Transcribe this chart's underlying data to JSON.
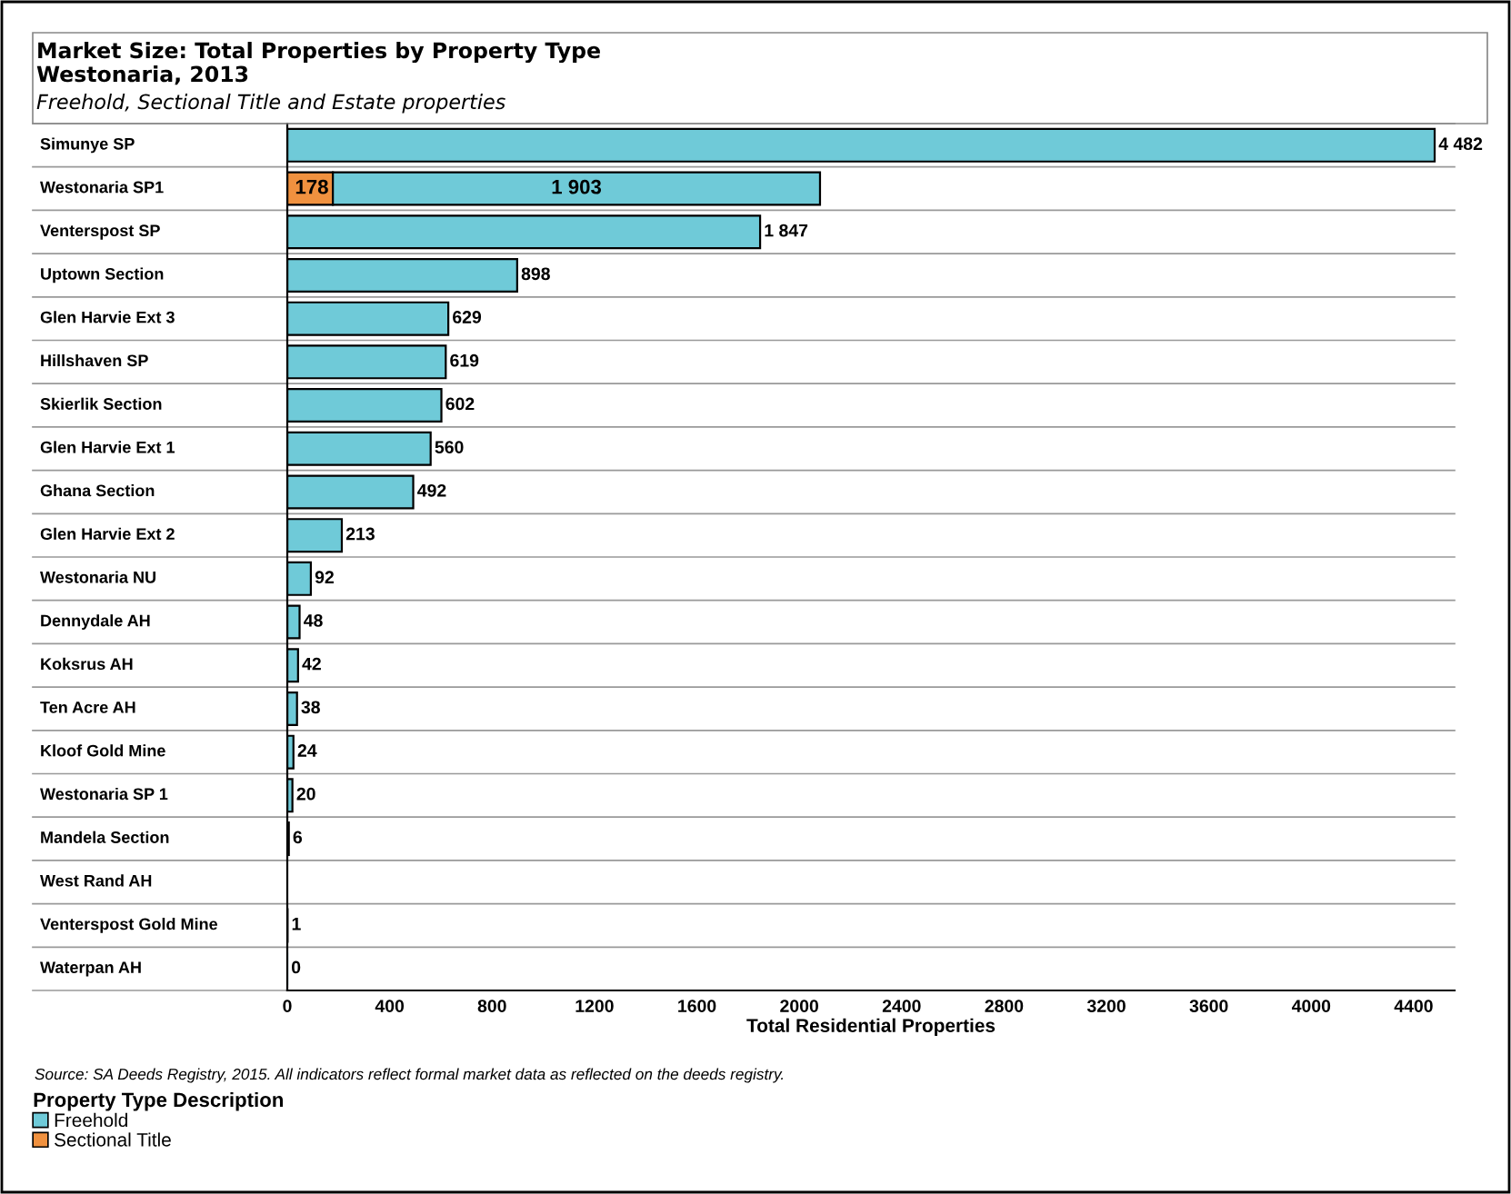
{
  "chart_data": {
    "type": "bar",
    "orientation": "horizontal",
    "stacked": true,
    "title": "Market Size: Total Properties by Property Type",
    "subtitle": "Westonaria, 2013",
    "xlabel": "Total Residential Properties",
    "legend_title": "Property Type Description",
    "legend": "bottom left",
    "categories": [
      "Simunye SP",
      "Westonaria SP1",
      "Venterspost SP",
      "Uptown Section",
      "Glen Harvie Ext 3",
      "Hillshaven SP",
      "Skierlik Section",
      "Glen Harvie Ext 1",
      "Ghana Section",
      "Glen Harvie Ext 2",
      "Westonaria NU",
      "Dennydale AH",
      "Koksrus AH",
      "Ten Acre AH",
      "Kloof Gold Mine",
      "Westonaria SP 1",
      "Mandela Section",
      "West Rand AH",
      "Venterspost Gold Mine",
      "Waterpan AH"
    ],
    "series": [
      {
        "name": "Sectional Title",
        "color": "#f0913f",
        "values": [
          null,
          178,
          null,
          null,
          null,
          null,
          null,
          null,
          null,
          null,
          null,
          null,
          null,
          null,
          null,
          null,
          null,
          null,
          null,
          null
        ],
        "value_labels": [
          null,
          "178",
          null,
          null,
          null,
          null,
          null,
          null,
          null,
          null,
          null,
          null,
          null,
          null,
          null,
          null,
          null,
          null,
          null,
          null
        ]
      },
      {
        "name": "Freehold",
        "color": "#6fcad8",
        "values": [
          4482,
          1903,
          1847,
          898,
          629,
          619,
          602,
          560,
          492,
          213,
          92,
          48,
          42,
          38,
          24,
          20,
          6,
          null,
          1,
          0
        ],
        "value_labels": [
          "4 482",
          "1 903",
          "1 847",
          "898",
          "629",
          "619",
          "602",
          "560",
          "492",
          "213",
          "92",
          "48",
          "42",
          "38",
          "24",
          "20",
          "6",
          null,
          "1",
          "0"
        ]
      }
    ],
    "xlim": [
      0,
      4560
    ],
    "xticks": [
      0,
      400,
      800,
      1200,
      1600,
      2000,
      2400,
      2800,
      3200,
      3600,
      4000,
      4400
    ],
    "annotations": [
      "Freehold, Sectional Title and Estate properties",
      "Source: SA Deeds Registry, 2015. All indicators reflect formal market data as reflected on the deeds registry."
    ]
  }
}
